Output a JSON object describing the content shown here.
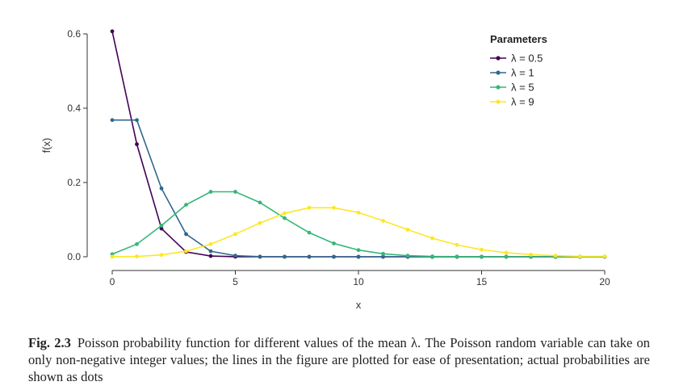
{
  "chart_data": {
    "type": "line",
    "title": "",
    "xlabel": "x",
    "ylabel": "f(x)",
    "xlim": [
      0,
      20
    ],
    "ylim": [
      0,
      0.6
    ],
    "x_ticks": [
      "0",
      "5",
      "10",
      "15",
      "20"
    ],
    "y_ticks": [
      "0.0",
      "0.2",
      "0.4",
      "0.6"
    ],
    "x": [
      0,
      1,
      2,
      3,
      4,
      5,
      6,
      7,
      8,
      9,
      10,
      11,
      12,
      13,
      14,
      15,
      16,
      17,
      18,
      19,
      20
    ],
    "legend_title": "Parameters",
    "legend_position": "top-right",
    "grid": false,
    "series": [
      {
        "name": "λ = 0.5",
        "color": "#440154",
        "values": [
          0.607,
          0.303,
          0.076,
          0.013,
          0.002,
          0.0002,
          0,
          0,
          0,
          0,
          0,
          0,
          0,
          0,
          0,
          0,
          0,
          0,
          0,
          0,
          0
        ]
      },
      {
        "name": "λ = 1",
        "color": "#31688e",
        "values": [
          0.368,
          0.368,
          0.184,
          0.061,
          0.015,
          0.003,
          0.0005,
          0.0001,
          0,
          0,
          0,
          0,
          0,
          0,
          0,
          0,
          0,
          0,
          0,
          0,
          0
        ]
      },
      {
        "name": "λ = 5",
        "color": "#35b779",
        "values": [
          0.007,
          0.034,
          0.084,
          0.14,
          0.175,
          0.175,
          0.146,
          0.104,
          0.065,
          0.036,
          0.018,
          0.008,
          0.003,
          0.001,
          0.0005,
          0.0002,
          0,
          0,
          0,
          0,
          0
        ]
      },
      {
        "name": "λ = 9",
        "color": "#fde725",
        "values": [
          0.0001,
          0.001,
          0.005,
          0.015,
          0.034,
          0.061,
          0.091,
          0.117,
          0.132,
          0.132,
          0.119,
          0.097,
          0.073,
          0.05,
          0.032,
          0.019,
          0.011,
          0.006,
          0.003,
          0.001,
          0.001
        ]
      }
    ]
  },
  "caption": {
    "label": "Fig. 2.3",
    "text": "Poisson probability function for different values of the mean λ. The Poisson random variable can take on only non-negative integer values; the lines in the figure are plotted for ease of presentation; actual probabilities are shown as dots"
  }
}
